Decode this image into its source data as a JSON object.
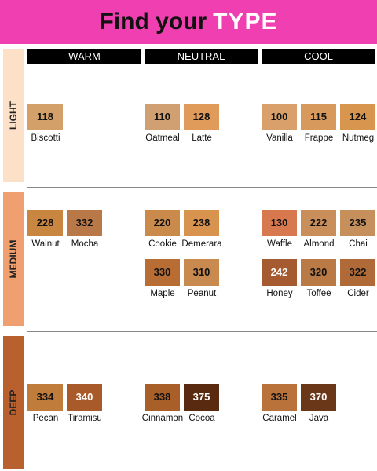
{
  "header": {
    "title_part1": "Find your",
    "title_part2": "TYPE"
  },
  "columns": [
    "WARM",
    "NEUTRAL",
    "COOL"
  ],
  "rows": [
    {
      "label": "LIGHT",
      "color": "#fde0c8",
      "groups": [
        [
          [
            {
              "code": "118",
              "name": "Biscotti",
              "color": "#d4a06a"
            }
          ]
        ],
        [
          [
            {
              "code": "110",
              "name": "Oatmeal",
              "color": "#d0a072"
            },
            {
              "code": "128",
              "name": "Latte",
              "color": "#e09a5a"
            }
          ]
        ],
        [
          [
            {
              "code": "100",
              "name": "Vanilla",
              "color": "#d9a06c"
            },
            {
              "code": "115",
              "name": "Frappe",
              "color": "#d89a5c"
            },
            {
              "code": "124",
              "name": "Nutmeg",
              "color": "#d8954e"
            }
          ]
        ]
      ]
    },
    {
      "label": "MEDIUM",
      "color": "#f0a070",
      "groups": [
        [
          [
            {
              "code": "228",
              "name": "Walnut",
              "color": "#c98640"
            },
            {
              "code": "332",
              "name": "Mocha",
              "color": "#b87848"
            }
          ]
        ],
        [
          [
            {
              "code": "220",
              "name": "Cookie",
              "color": "#c98a4c"
            },
            {
              "code": "238",
              "name": "Demerara",
              "color": "#d8944e"
            }
          ],
          [
            {
              "code": "330",
              "name": "Maple",
              "color": "#b86d35"
            },
            {
              "code": "310",
              "name": "Peanut",
              "color": "#c98a50"
            }
          ]
        ],
        [
          [
            {
              "code": "130",
              "name": "Waffle",
              "color": "#d8784e"
            },
            {
              "code": "222",
              "name": "Almond",
              "color": "#c98e5a"
            },
            {
              "code": "235",
              "name": "Chai",
              "color": "#c6905c"
            }
          ],
          [
            {
              "code": "242",
              "name": "Honey",
              "color": "#a65a30"
            },
            {
              "code": "320",
              "name": "Toffee",
              "color": "#b97a45"
            },
            {
              "code": "322",
              "name": "Cider",
              "color": "#b06a38"
            }
          ]
        ]
      ]
    },
    {
      "label": "DEEP",
      "color": "#b8602e",
      "groups": [
        [
          [
            {
              "code": "334",
              "name": "Pecan",
              "color": "#c07c3a"
            },
            {
              "code": "340",
              "name": "Tiramisu",
              "color": "#a85a2a"
            }
          ]
        ],
        [
          [
            {
              "code": "338",
              "name": "Cinnamon",
              "color": "#a86028"
            },
            {
              "code": "375",
              "name": "Cocoa",
              "color": "#5a2a10"
            }
          ]
        ],
        [
          [
            {
              "code": "335",
              "name": "Caramel",
              "color": "#b8723a"
            },
            {
              "code": "370",
              "name": "Java",
              "color": "#6a3818"
            }
          ]
        ]
      ]
    }
  ]
}
